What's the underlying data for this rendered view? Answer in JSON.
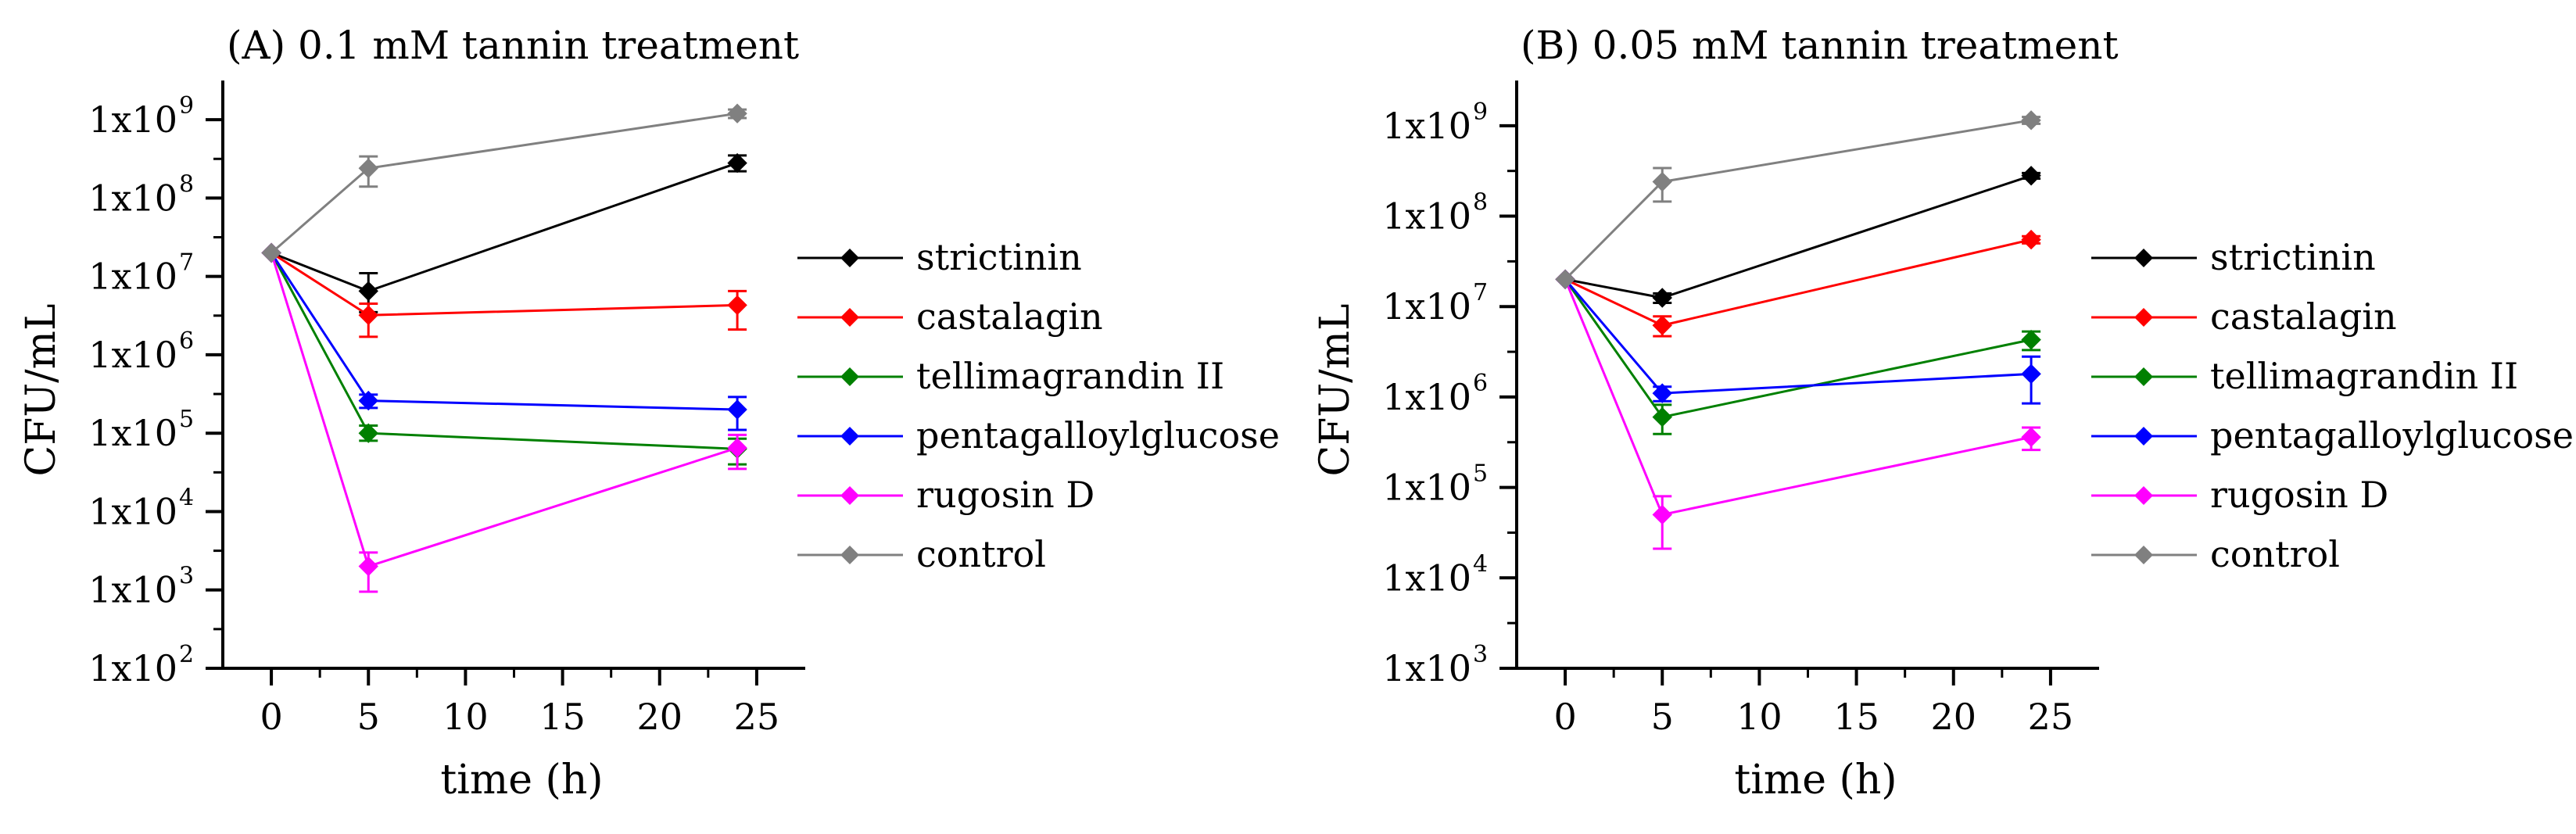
{
  "chart_data": [
    {
      "type": "line",
      "title": "(A) 0.1 mM tannin treatment",
      "xlabel": "time (h)",
      "ylabel": "CFU/mL",
      "yscale": "log",
      "xlim": [
        -2.5,
        27.5
      ],
      "ylim_exp": [
        2,
        9.5
      ],
      "x_ticks": [
        0,
        5,
        10,
        15,
        20,
        25
      ],
      "x_tick_labels": [
        "0",
        "5",
        "10",
        "15",
        "20",
        "25"
      ],
      "y_ticks_exp": [
        2,
        3,
        4,
        5,
        6,
        7,
        8,
        9
      ],
      "y_tick_labels": [
        {
          "base": "1x10",
          "exp": "2"
        },
        {
          "base": "1x10",
          "exp": "3"
        },
        {
          "base": "1x10",
          "exp": "4"
        },
        {
          "base": "1x10",
          "exp": "5"
        },
        {
          "base": "1x10",
          "exp": "6"
        },
        {
          "base": "1x10",
          "exp": "7"
        },
        {
          "base": "1x10",
          "exp": "8"
        },
        {
          "base": "1x10",
          "exp": "9"
        }
      ],
      "x": [
        0,
        5,
        24
      ],
      "series": [
        {
          "name": "strictinin",
          "color": "#000000",
          "values": [
            20000000,
            6500000,
            280000000
          ],
          "err_low": [
            null,
            3500000,
            220000000
          ],
          "err_high": [
            null,
            11000000,
            350000000
          ]
        },
        {
          "name": "castalagin",
          "color": "#ff0000",
          "values": [
            20000000,
            3200000,
            4300000
          ],
          "err_low": [
            null,
            1700000,
            2100000
          ],
          "err_high": [
            null,
            4500000,
            6500000
          ]
        },
        {
          "name": "tellimagrandin II",
          "color": "#008000",
          "values": [
            20000000,
            100000,
            63000
          ],
          "err_low": [
            null,
            80000,
            40000
          ],
          "err_high": [
            null,
            125000,
            85000
          ]
        },
        {
          "name": "pentagalloylglucose",
          "color": "#0000ff",
          "values": [
            20000000,
            260000,
            200000
          ],
          "err_low": [
            null,
            210000,
            110000
          ],
          "err_high": [
            null,
            310000,
            290000
          ]
        },
        {
          "name": "rugosin D",
          "color": "#ff00ff",
          "values": [
            20000000,
            2000,
            65000
          ],
          "err_low": [
            null,
            950,
            35000
          ],
          "err_high": [
            null,
            3000,
            95000
          ]
        },
        {
          "name": "control",
          "color": "#808080",
          "values": [
            20000000,
            240000000,
            1200000000
          ],
          "err_low": [
            null,
            140000000,
            1050000000
          ],
          "err_high": [
            null,
            340000000,
            1350000000
          ]
        }
      ]
    },
    {
      "type": "line",
      "title": "(B) 0.05 mM tannin treatment",
      "xlabel": "time (h)",
      "ylabel": "CFU/mL",
      "yscale": "log",
      "xlim": [
        -2.5,
        27.5
      ],
      "ylim_exp": [
        3,
        9.5
      ],
      "x_ticks": [
        0,
        5,
        10,
        15,
        20,
        25
      ],
      "x_tick_labels": [
        "0",
        "5",
        "10",
        "15",
        "20",
        "25"
      ],
      "y_ticks_exp": [
        3,
        4,
        5,
        6,
        7,
        8,
        9
      ],
      "y_tick_labels": [
        {
          "base": "1x10",
          "exp": "3"
        },
        {
          "base": "1x10",
          "exp": "4"
        },
        {
          "base": "1x10",
          "exp": "5"
        },
        {
          "base": "1x10",
          "exp": "6"
        },
        {
          "base": "1x10",
          "exp": "7"
        },
        {
          "base": "1x10",
          "exp": "8"
        },
        {
          "base": "1x10",
          "exp": "9"
        }
      ],
      "x": [
        0,
        5,
        24
      ],
      "series": [
        {
          "name": "strictinin",
          "color": "#000000",
          "values": [
            20000000,
            12500000,
            280000000
          ],
          "err_low": [
            null,
            11000000,
            260000000
          ],
          "err_high": [
            null,
            14000000,
            300000000
          ]
        },
        {
          "name": "castalagin",
          "color": "#ff0000",
          "values": [
            20000000,
            6200000,
            55000000
          ],
          "err_low": [
            null,
            4700000,
            50000000
          ],
          "err_high": [
            null,
            7800000,
            60000000
          ]
        },
        {
          "name": "tellimagrandin II",
          "color": "#008000",
          "values": [
            20000000,
            600000,
            4300000
          ],
          "err_low": [
            null,
            390000,
            3300000
          ],
          "err_high": [
            null,
            820000,
            5300000
          ]
        },
        {
          "name": "pentagalloylglucose",
          "color": "#0000ff",
          "values": [
            20000000,
            1100000,
            1800000
          ],
          "err_low": [
            null,
            900000,
            850000
          ],
          "err_high": [
            null,
            1300000,
            2800000
          ]
        },
        {
          "name": "rugosin D",
          "color": "#ff00ff",
          "values": [
            20000000,
            50000,
            360000
          ],
          "err_low": [
            null,
            21000,
            260000
          ],
          "err_high": [
            null,
            80000,
            460000
          ]
        },
        {
          "name": "control",
          "color": "#808080",
          "values": [
            20000000,
            240000000,
            1150000000
          ],
          "err_low": [
            null,
            145000000,
            1050000000
          ],
          "err_high": [
            null,
            340000000,
            1250000000
          ]
        }
      ]
    }
  ]
}
